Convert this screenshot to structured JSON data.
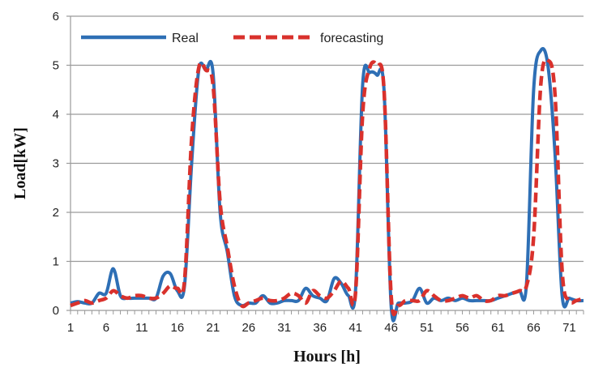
{
  "chart_data": {
    "type": "line",
    "xlabel": "Hours [h]",
    "ylabel": "Load[kW]",
    "xlim": [
      1,
      73
    ],
    "ylim": [
      0,
      6
    ],
    "yticks": [
      0,
      1,
      2,
      3,
      4,
      5,
      6
    ],
    "xticks": [
      1,
      6,
      11,
      16,
      21,
      26,
      31,
      36,
      41,
      46,
      51,
      56,
      61,
      66,
      71
    ],
    "grid": "horizontal",
    "legend_position": "top-left",
    "x": [
      1,
      2,
      3,
      4,
      5,
      6,
      7,
      8,
      9,
      10,
      11,
      12,
      13,
      14,
      15,
      16,
      17,
      18,
      19,
      20,
      21,
      22,
      23,
      24,
      25,
      26,
      27,
      28,
      29,
      30,
      31,
      32,
      33,
      34,
      35,
      36,
      37,
      38,
      39,
      40,
      41,
      42,
      43,
      44,
      45,
      46,
      47,
      48,
      49,
      50,
      51,
      52,
      53,
      54,
      55,
      56,
      57,
      58,
      59,
      60,
      61,
      62,
      63,
      64,
      65,
      66,
      67,
      68,
      69,
      70,
      71,
      72,
      73
    ],
    "series": [
      {
        "name": "Real",
        "color": "#2e6fb5",
        "style": "solid",
        "values": [
          0.15,
          0.18,
          0.15,
          0.15,
          0.35,
          0.35,
          0.85,
          0.3,
          0.25,
          0.25,
          0.25,
          0.25,
          0.25,
          0.7,
          0.75,
          0.4,
          0.5,
          3.0,
          4.9,
          4.9,
          4.85,
          2.0,
          1.2,
          0.3,
          0.1,
          0.15,
          0.15,
          0.3,
          0.15,
          0.15,
          0.2,
          0.2,
          0.2,
          0.45,
          0.3,
          0.25,
          0.2,
          0.65,
          0.55,
          0.3,
          0.4,
          4.6,
          4.85,
          4.8,
          4.5,
          0.1,
          0.15,
          0.15,
          0.2,
          0.45,
          0.15,
          0.25,
          0.2,
          0.25,
          0.2,
          0.25,
          0.2,
          0.2,
          0.2,
          0.2,
          0.25,
          0.3,
          0.35,
          0.4,
          0.55,
          4.5,
          5.3,
          5.0,
          3.2,
          0.3,
          0.25,
          0.2,
          0.2
        ]
      },
      {
        "name": "forecasting",
        "color": "#d9312c",
        "style": "dashed",
        "values": [
          0.1,
          0.15,
          0.2,
          0.15,
          0.2,
          0.25,
          0.4,
          0.3,
          0.25,
          0.3,
          0.3,
          0.25,
          0.25,
          0.35,
          0.5,
          0.45,
          0.6,
          3.5,
          4.95,
          4.9,
          4.6,
          2.2,
          1.3,
          0.5,
          0.1,
          0.15,
          0.2,
          0.25,
          0.2,
          0.2,
          0.25,
          0.35,
          0.3,
          0.15,
          0.4,
          0.3,
          0.25,
          0.4,
          0.6,
          0.45,
          0.35,
          4.0,
          4.95,
          5.0,
          4.5,
          0.3,
          0.1,
          0.2,
          0.2,
          0.2,
          0.4,
          0.3,
          0.2,
          0.2,
          0.25,
          0.3,
          0.25,
          0.3,
          0.2,
          0.2,
          0.3,
          0.3,
          0.35,
          0.4,
          0.5,
          1.5,
          4.6,
          5.1,
          4.4,
          0.8,
          0.2,
          0.2,
          0.25
        ]
      }
    ]
  }
}
